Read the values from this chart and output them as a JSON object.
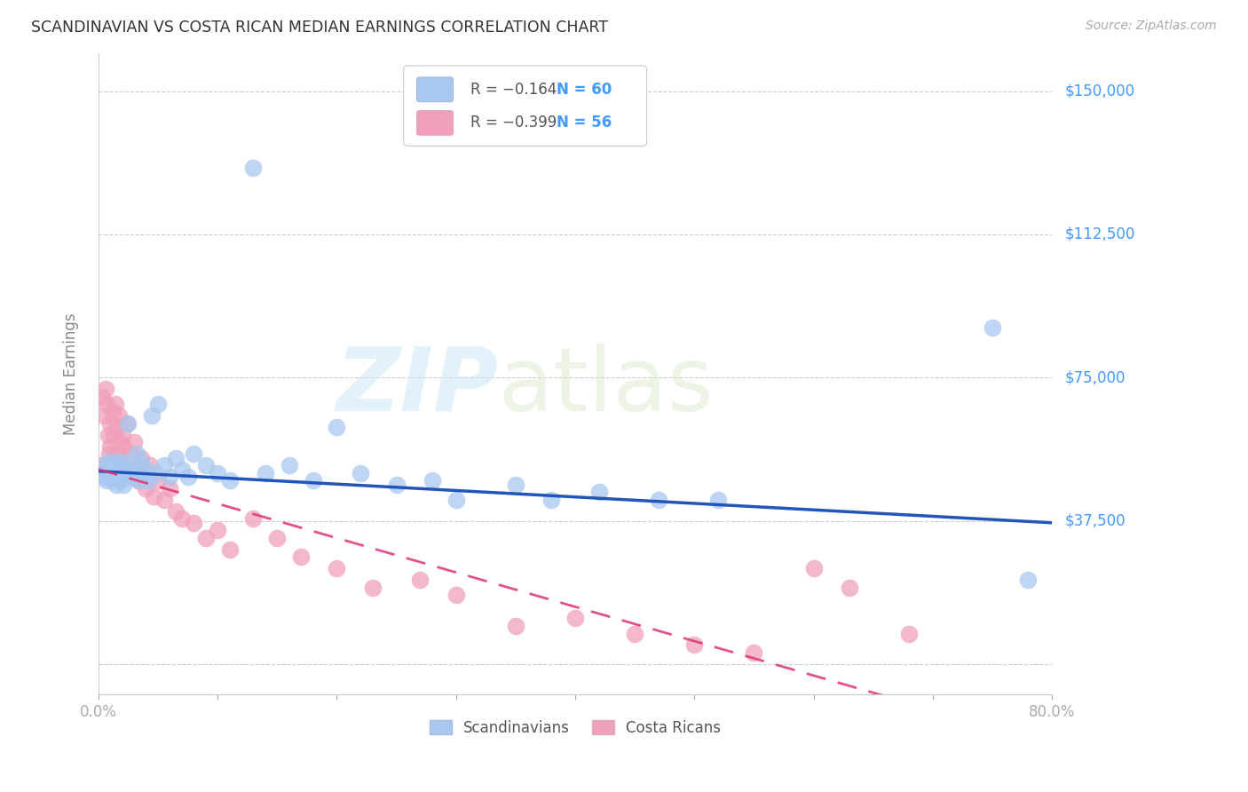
{
  "title": "SCANDINAVIAN VS COSTA RICAN MEDIAN EARNINGS CORRELATION CHART",
  "source": "Source: ZipAtlas.com",
  "ylabel": "Median Earnings",
  "yticks": [
    0,
    37500,
    75000,
    112500,
    150000
  ],
  "ytick_labels": [
    "",
    "$37,500",
    "$75,000",
    "$112,500",
    "$150,000"
  ],
  "xmin": 0.0,
  "xmax": 0.8,
  "ymin": -8000,
  "ymax": 160000,
  "scandinavians_color": "#a8c8f0",
  "scandinavians_edge": "#6090d0",
  "costa_ricans_color": "#f0a0b8",
  "costa_ricans_edge": "#d06080",
  "trend_blue_color": "#2255bb",
  "trend_pink_color": "#dd3377",
  "ytick_color": "#4499ff",
  "grid_color": "#cccccc",
  "background_color": "#ffffff",
  "legend_label_blue": "Scandinavians",
  "legend_label_pink": "Costa Ricans",
  "scan_x": [
    0.002,
    0.004,
    0.005,
    0.006,
    0.007,
    0.008,
    0.009,
    0.01,
    0.01,
    0.012,
    0.013,
    0.014,
    0.015,
    0.015,
    0.016,
    0.017,
    0.018,
    0.019,
    0.02,
    0.02,
    0.021,
    0.022,
    0.025,
    0.026,
    0.028,
    0.03,
    0.032,
    0.034,
    0.036,
    0.038,
    0.04,
    0.042,
    0.045,
    0.048,
    0.05,
    0.055,
    0.06,
    0.065,
    0.07,
    0.075,
    0.08,
    0.09,
    0.1,
    0.11,
    0.13,
    0.14,
    0.16,
    0.18,
    0.2,
    0.22,
    0.25,
    0.28,
    0.3,
    0.35,
    0.38,
    0.42,
    0.47,
    0.52,
    0.75,
    0.78
  ],
  "scan_y": [
    50000,
    51000,
    49000,
    52000,
    48000,
    53000,
    50000,
    51000,
    49000,
    52000,
    48000,
    50000,
    53000,
    47000,
    51000,
    49000,
    52000,
    48000,
    50000,
    53000,
    47000,
    51000,
    63000,
    49000,
    52000,
    50000,
    55000,
    48000,
    53000,
    49000,
    51000,
    48000,
    65000,
    50000,
    68000,
    52000,
    49000,
    54000,
    51000,
    49000,
    55000,
    52000,
    50000,
    48000,
    130000,
    50000,
    52000,
    48000,
    62000,
    50000,
    47000,
    48000,
    43000,
    47000,
    43000,
    45000,
    43000,
    43000,
    88000,
    22000
  ],
  "cr_x": [
    0.002,
    0.003,
    0.005,
    0.006,
    0.007,
    0.008,
    0.009,
    0.01,
    0.01,
    0.012,
    0.013,
    0.014,
    0.015,
    0.016,
    0.017,
    0.018,
    0.019,
    0.02,
    0.02,
    0.021,
    0.022,
    0.024,
    0.026,
    0.028,
    0.03,
    0.032,
    0.034,
    0.036,
    0.038,
    0.04,
    0.043,
    0.046,
    0.05,
    0.055,
    0.06,
    0.065,
    0.07,
    0.08,
    0.09,
    0.1,
    0.11,
    0.13,
    0.15,
    0.17,
    0.2,
    0.23,
    0.27,
    0.3,
    0.35,
    0.4,
    0.45,
    0.5,
    0.55,
    0.6,
    0.63,
    0.68
  ],
  "cr_y": [
    52000,
    70000,
    65000,
    72000,
    68000,
    60000,
    55000,
    63000,
    57000,
    66000,
    60000,
    68000,
    62000,
    55000,
    65000,
    58000,
    52000,
    60000,
    53000,
    57000,
    50000,
    63000,
    55000,
    50000,
    58000,
    52000,
    48000,
    54000,
    50000,
    46000,
    52000,
    44000,
    48000,
    43000,
    46000,
    40000,
    38000,
    37000,
    33000,
    35000,
    30000,
    38000,
    33000,
    28000,
    25000,
    20000,
    22000,
    18000,
    10000,
    12000,
    8000,
    5000,
    3000,
    25000,
    20000,
    8000
  ]
}
